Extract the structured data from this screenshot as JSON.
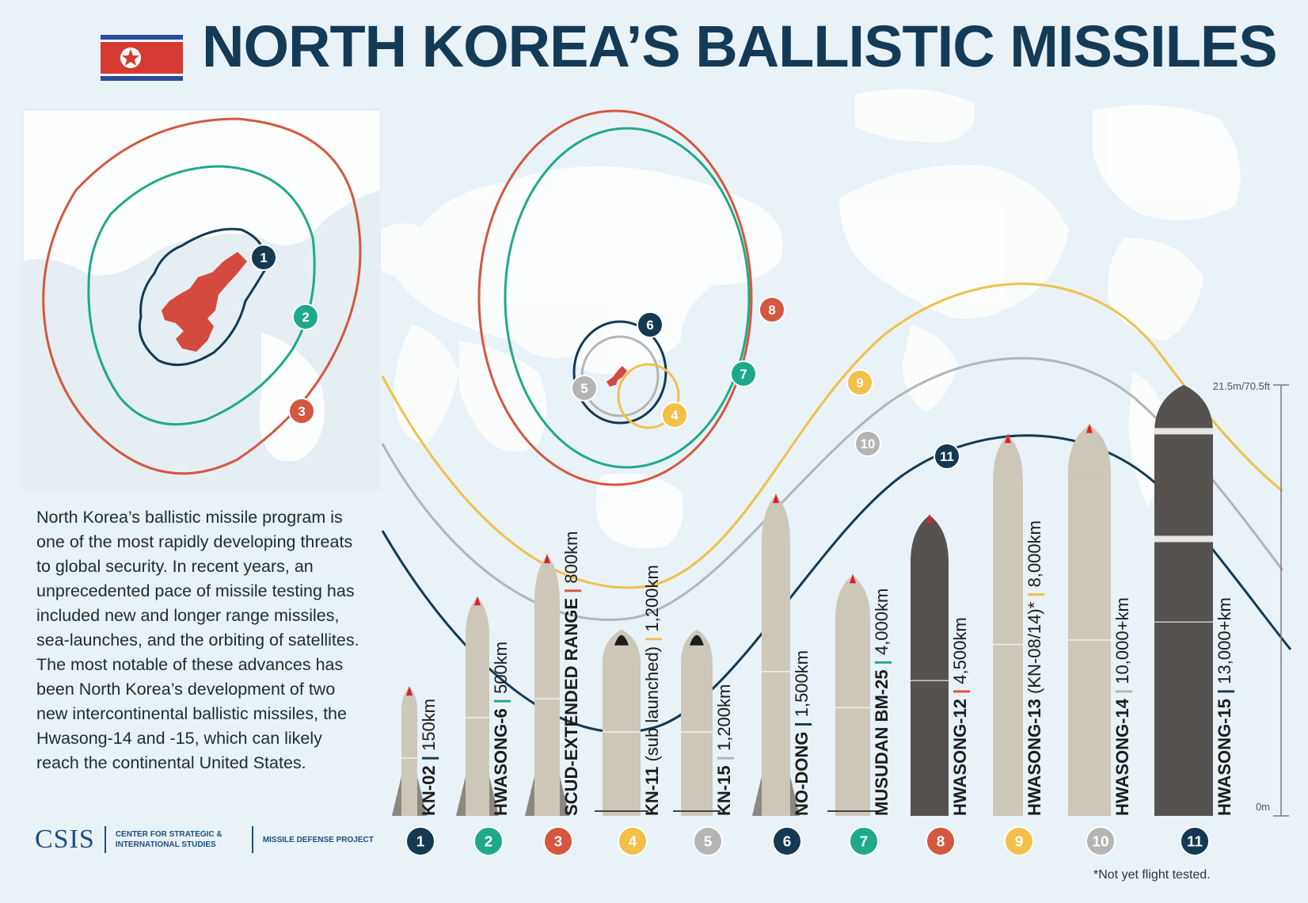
{
  "title": "NORTH KOREA’S BALLISTIC MISSILES",
  "description": "North Korea’s ballistic missile program is one of the most rapidly developing threats to global security. In recent years, an unprecedented pace of missile testing has included new and longer range missiles, sea-launches, and the orbiting of satellites. The most notable of these advances has been North Korea’s development of two new intercontinental ballistic missiles, the Hwasong-14 and -15, which can likely reach the continental United States.",
  "logo": {
    "name": "CSIS",
    "org": "CENTER FOR STRATEGIC & INTERNATIONAL STUDIES",
    "project": "MISSILE DEFENSE PROJECT"
  },
  "footnote": "*Not yet flight tested.",
  "scale": {
    "top_label": "21.5m/70.5ft",
    "bottom_label": "0m",
    "max_m": 21.5
  },
  "colors": {
    "navy": "#143a52",
    "teal": "#1fa98b",
    "orange": "#d4573f",
    "yellow": "#f2c04b",
    "gray": "#b5b5b5",
    "missile": "#cdc7ba",
    "missile_dark": "#55524f",
    "korea": "#d44a3e",
    "title": "#133a57"
  },
  "missiles": [
    {
      "num": "1",
      "name": "KN-02",
      "range": "150km",
      "note": "",
      "color": "navy",
      "length_m": 6.4
    },
    {
      "num": "2",
      "name": "HWASONG-6",
      "range": "500km",
      "note": "",
      "color": "teal",
      "length_m": 10.9
    },
    {
      "num": "3",
      "name": "SCUD-EXTENDED RANGE",
      "range": "800km",
      "note": "",
      "color": "orange",
      "length_m": 13.0
    },
    {
      "num": "4",
      "name": "KN-11",
      "range": "1,200km",
      "note": "(sub launched)",
      "color": "yellow",
      "length_m": 9.3
    },
    {
      "num": "5",
      "name": "KN-15",
      "range": "1,200km",
      "note": "",
      "color": "gray",
      "length_m": 9.3
    },
    {
      "num": "6",
      "name": "NO-DONG",
      "range": "1,500km",
      "note": "",
      "color": "navy",
      "length_m": 16.0
    },
    {
      "num": "7",
      "name": "MUSUDAN BM-25",
      "range": "4,000km",
      "note": "",
      "color": "teal",
      "length_m": 12.0
    },
    {
      "num": "8",
      "name": "HWASONG-12",
      "range": "4,500km",
      "note": "",
      "color": "orange",
      "length_m": 15.0
    },
    {
      "num": "9",
      "name": "HWASONG-13",
      "range": "8,000km",
      "note": "(KN-08/14)*",
      "color": "yellow",
      "length_m": 19.0
    },
    {
      "num": "10",
      "name": "HWASONG-14",
      "range": "10,000+km",
      "note": "",
      "color": "gray",
      "length_m": 19.5
    },
    {
      "num": "11",
      "name": "HWASONG-15",
      "range": "13,000+km",
      "note": "",
      "color": "navy",
      "length_m": 21.5
    }
  ]
}
